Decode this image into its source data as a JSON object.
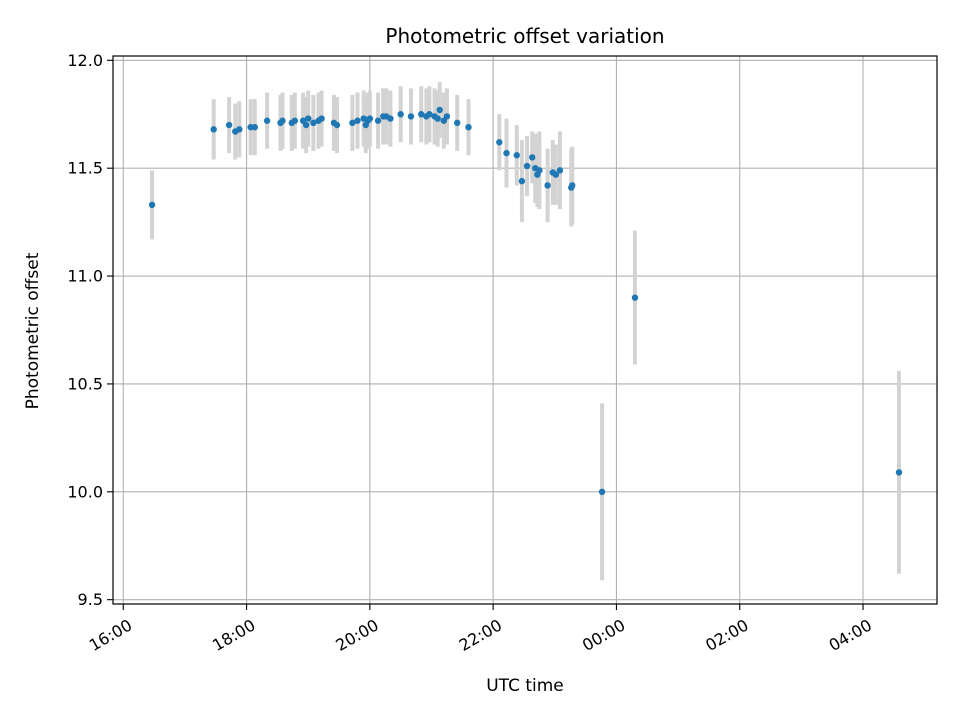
{
  "chart_data": {
    "type": "scatter",
    "title": "Photometric offset variation",
    "xlabel": "UTC time",
    "ylabel": "Photometric offset",
    "x_axis_kind": "time",
    "x_start": "16:00",
    "xlim": [
      "15:50",
      "05:12"
    ],
    "ylim": [
      9.48,
      12.02
    ],
    "x_ticks": [
      "16:00",
      "18:00",
      "20:00",
      "22:00",
      "00:00",
      "02:00",
      "04:00"
    ],
    "y_ticks": [
      9.5,
      10.0,
      10.5,
      11.0,
      11.5,
      12.0
    ],
    "y_tick_labels": [
      "9.5",
      "10.0",
      "10.5",
      "11.0",
      "11.5",
      "12.0"
    ],
    "grid": true,
    "colors": {
      "point": "#1f77b4",
      "errorbar": "#d3d3d3",
      "grid": "#b0b0b0"
    },
    "series": [
      {
        "x": [
          "16:28",
          "17:28",
          "17:43",
          "17:49",
          "17:53",
          "18:04",
          "18:08",
          "18:20",
          "18:33",
          "18:35",
          "18:44",
          "18:47",
          "18:55",
          "18:58",
          "19:00",
          "19:05",
          "19:10",
          "19:13",
          "19:25",
          "19:28",
          "19:43",
          "19:48",
          "19:54",
          "19:56",
          "19:58",
          "20:00",
          "20:08",
          "20:13",
          "20:16",
          "20:20",
          "20:30",
          "20:40",
          "20:50",
          "20:55",
          "20:58",
          "21:03",
          "21:06",
          "21:08",
          "21:12",
          "21:15",
          "21:25",
          "21:36",
          "22:06",
          "22:13",
          "22:23",
          "22:28",
          "22:33",
          "22:38",
          "22:41",
          "22:43",
          "22:45",
          "22:53",
          "22:58",
          "23:01",
          "23:05",
          "23:16",
          "23:17",
          "23:46",
          "00:18",
          "04:35"
        ],
        "y": [
          11.33,
          11.68,
          11.7,
          11.67,
          11.68,
          11.69,
          11.69,
          11.72,
          11.71,
          11.72,
          11.71,
          11.72,
          11.72,
          11.7,
          11.73,
          11.71,
          11.72,
          11.73,
          11.71,
          11.7,
          11.71,
          11.72,
          11.73,
          11.7,
          11.72,
          11.73,
          11.72,
          11.74,
          11.74,
          11.73,
          11.75,
          11.74,
          11.75,
          11.74,
          11.75,
          11.74,
          11.73,
          11.77,
          11.72,
          11.74,
          11.71,
          11.69,
          11.62,
          11.57,
          11.56,
          11.44,
          11.51,
          11.55,
          11.5,
          11.47,
          11.49,
          11.42,
          11.48,
          11.47,
          11.49,
          11.41,
          11.42,
          10.0,
          10.9,
          10.09
        ],
        "yerr": [
          0.16,
          0.14,
          0.13,
          0.13,
          0.13,
          0.13,
          0.13,
          0.13,
          0.13,
          0.13,
          0.13,
          0.13,
          0.13,
          0.13,
          0.13,
          0.13,
          0.13,
          0.13,
          0.13,
          0.13,
          0.13,
          0.13,
          0.13,
          0.13,
          0.13,
          0.13,
          0.13,
          0.13,
          0.13,
          0.13,
          0.13,
          0.13,
          0.13,
          0.13,
          0.13,
          0.13,
          0.13,
          0.13,
          0.13,
          0.13,
          0.13,
          0.13,
          0.13,
          0.16,
          0.14,
          0.19,
          0.14,
          0.12,
          0.16,
          0.15,
          0.18,
          0.17,
          0.15,
          0.14,
          0.18,
          0.18,
          0.18,
          0.41,
          0.31,
          0.47
        ]
      }
    ]
  }
}
